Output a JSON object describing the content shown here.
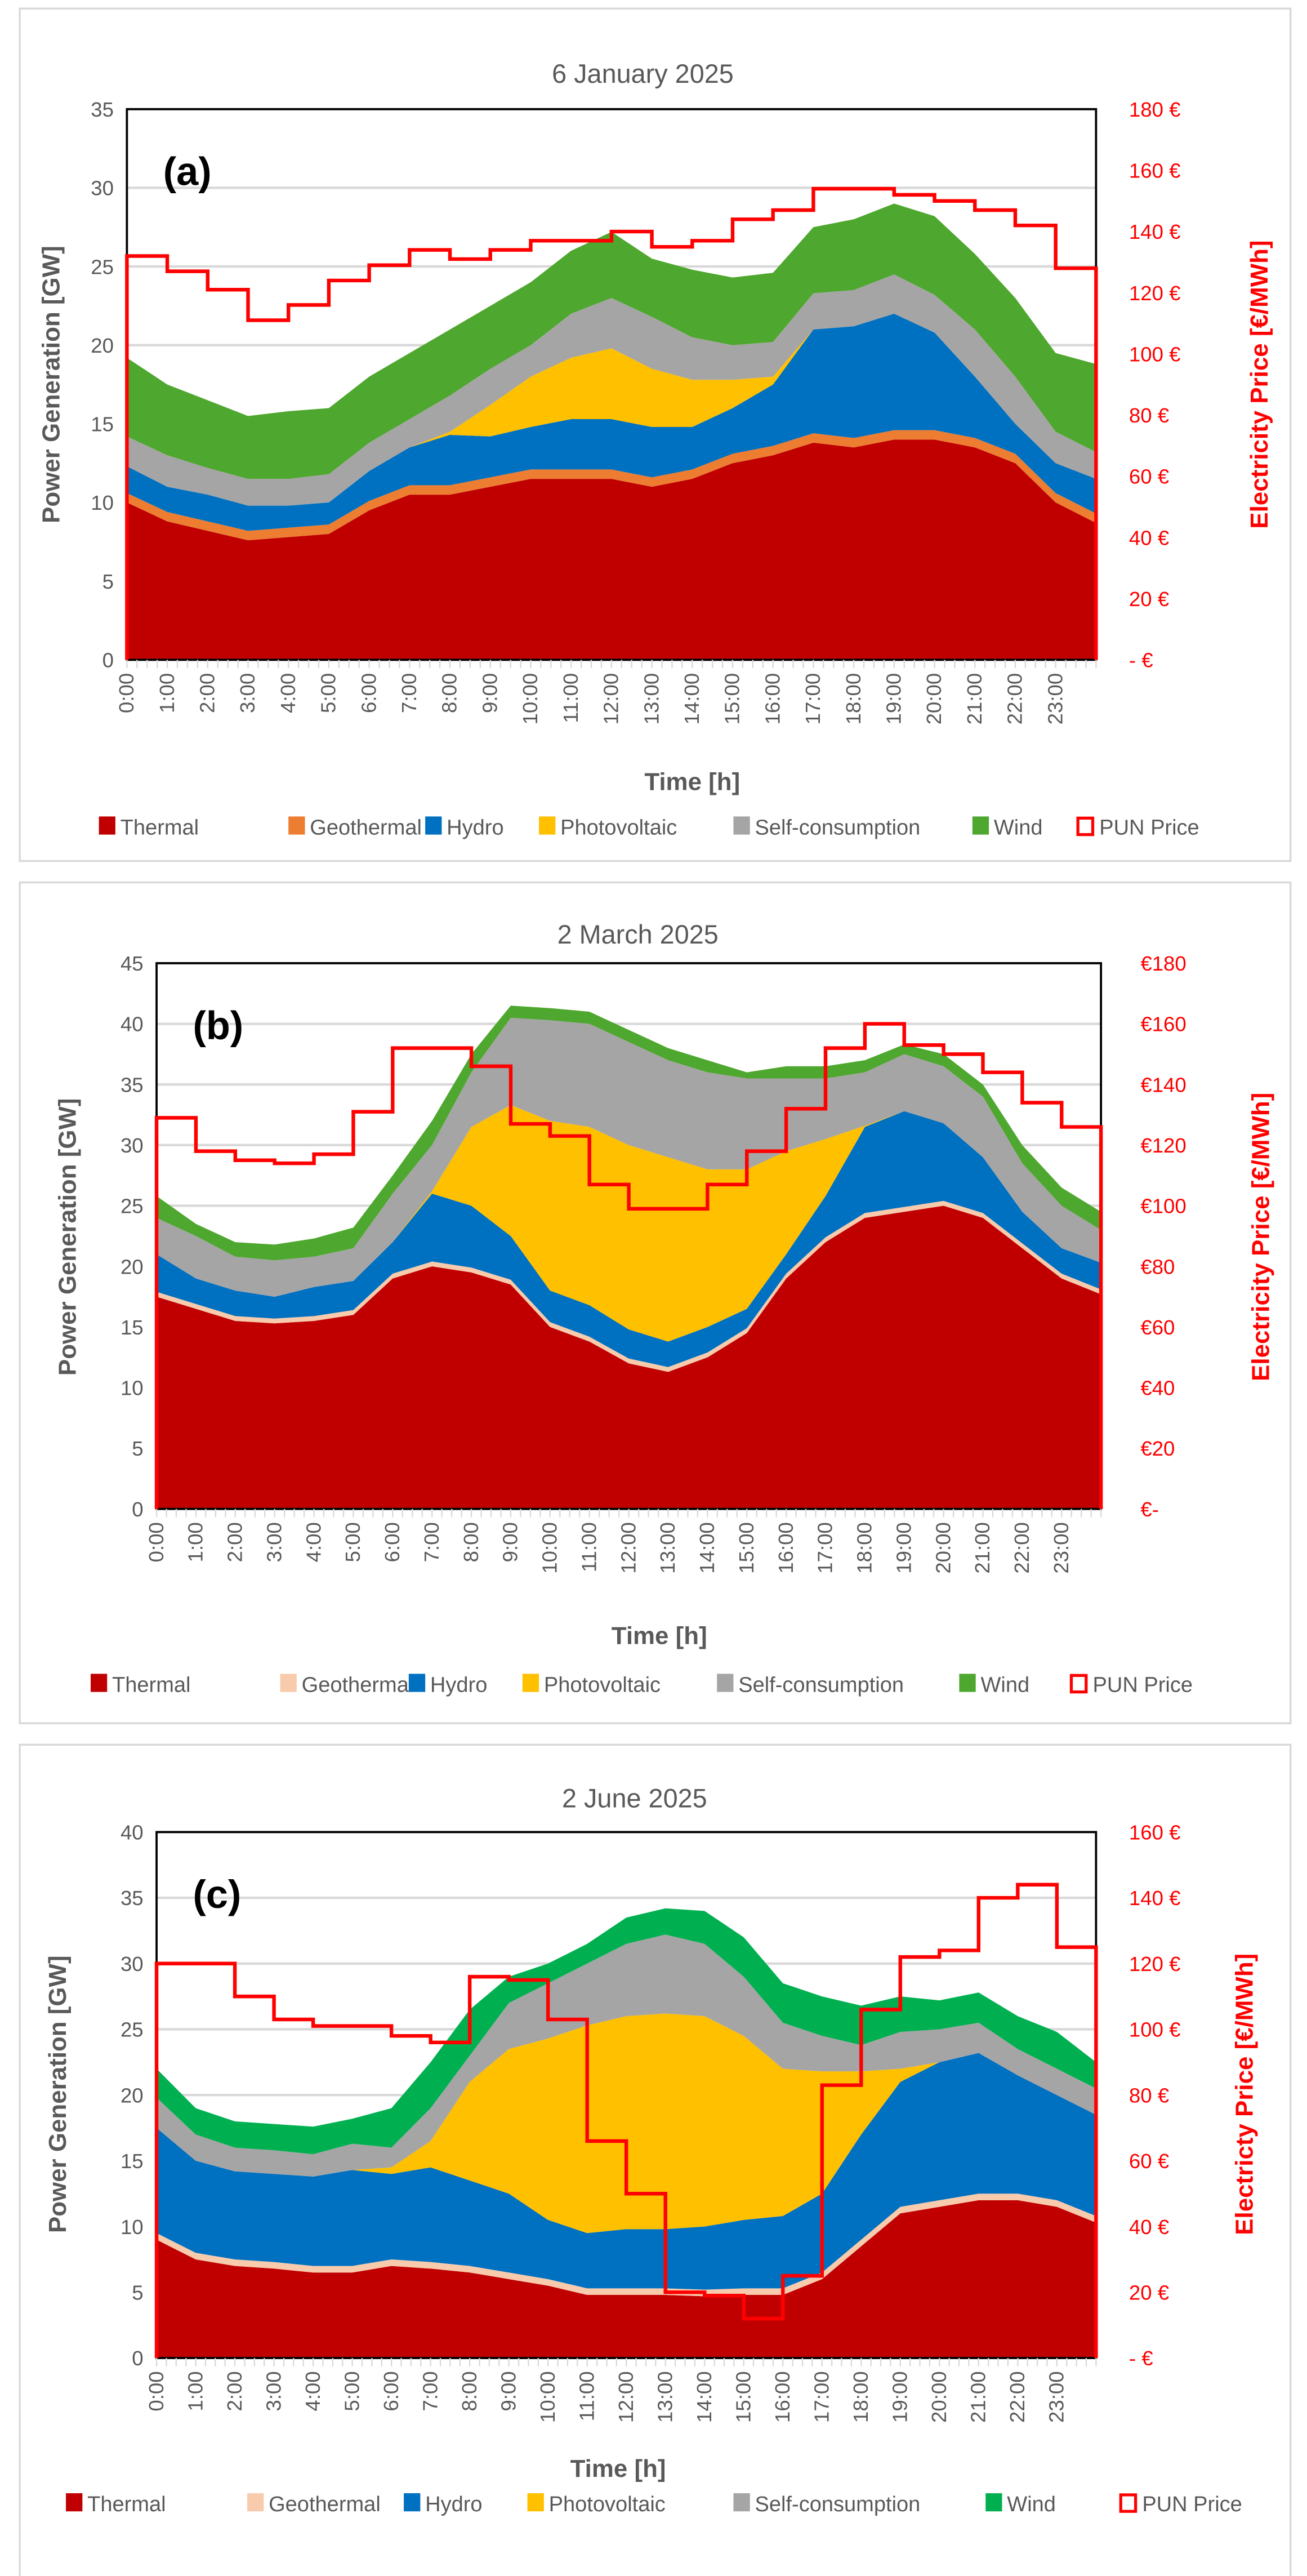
{
  "chart_data": [
    {
      "type": "area",
      "panel_label": "(a)",
      "title": "6 January 2025",
      "xlabel": "Time [h]",
      "ylabel": "Power Generation [GW]",
      "y2label": "Electricity Price [€/MWh]",
      "ylim": [
        0,
        35
      ],
      "ystep": 5,
      "y2lim": [
        0,
        180
      ],
      "y2step": 20,
      "y2_format": "suffix",
      "x_ticks": [
        "0:00",
        "1:00",
        "2:00",
        "3:00",
        "4:00",
        "5:00",
        "6:00",
        "7:00",
        "8:00",
        "9:00",
        "10:00",
        "11:00",
        "12:00",
        "13:00",
        "14:00",
        "15:00",
        "16:00",
        "17:00",
        "18:00",
        "19:00",
        "20:00",
        "21:00",
        "22:00",
        "23:00"
      ],
      "stacked_cumulative": true,
      "series": [
        {
          "name": "Thermal",
          "color": "#C00000",
          "values": [
            10,
            8.8,
            8.2,
            7.6,
            7.8,
            8,
            9.5,
            10.5,
            10.5,
            11,
            11.5,
            11.5,
            11.5,
            11,
            11.5,
            12.5,
            13,
            13.8,
            13.5,
            14,
            14,
            13.5,
            12.5,
            10,
            8.7
          ]
        },
        {
          "name": "Geothermal",
          "color": "#ED7D31",
          "values": [
            10.6,
            9.4,
            8.8,
            8.2,
            8.4,
            8.6,
            10.1,
            11.1,
            11.1,
            11.6,
            12.1,
            12.1,
            12.1,
            11.6,
            12.1,
            13.1,
            13.6,
            14.4,
            14.1,
            14.6,
            14.6,
            14.1,
            13.1,
            10.6,
            9.3
          ]
        },
        {
          "name": "Hydro",
          "color": "#0070C0",
          "values": [
            12.3,
            11,
            10.5,
            9.8,
            9.8,
            10,
            12,
            13.5,
            14.3,
            14.2,
            14.8,
            15.3,
            15.3,
            14.8,
            14.8,
            16,
            17.5,
            21,
            21.2,
            22,
            20.8,
            18,
            15,
            12.5,
            11.5
          ]
        },
        {
          "name": "Photovoltaic",
          "color": "#FFC000",
          "values": [
            12.3,
            11,
            10.5,
            9.8,
            9.8,
            10,
            12,
            13.5,
            14.5,
            16.2,
            18,
            19.2,
            19.8,
            18.5,
            17.8,
            17.8,
            18,
            21,
            21.2,
            22,
            20.8,
            18,
            15,
            12.5,
            11.5
          ]
        },
        {
          "name": "Self-consumption",
          "color": "#A5A5A5",
          "values": [
            14.2,
            13,
            12.2,
            11.5,
            11.5,
            11.8,
            13.8,
            15.3,
            16.8,
            18.5,
            20,
            22,
            23,
            21.8,
            20.5,
            20,
            20.2,
            23.3,
            23.5,
            24.5,
            23.2,
            21,
            18,
            14.5,
            13.2
          ]
        },
        {
          "name": "Wind",
          "color": "#4EA72E",
          "values": [
            19.2,
            17.5,
            16.5,
            15.5,
            15.8,
            16,
            18,
            19.5,
            21,
            22.5,
            24,
            26,
            27.2,
            25.5,
            24.8,
            24.3,
            24.6,
            27.5,
            28,
            29,
            28.2,
            25.8,
            23,
            19.5,
            18.8
          ]
        }
      ],
      "price": {
        "name": "PUN Price",
        "color": "#FF0000",
        "values": [
          132,
          127,
          121,
          111,
          116,
          124,
          129,
          134,
          131,
          134,
          137,
          137,
          140,
          135,
          137,
          144,
          147,
          154,
          154,
          152,
          150,
          147,
          142,
          128
        ]
      }
    },
    {
      "type": "area",
      "panel_label": "(b)",
      "title": "2 March 2025",
      "xlabel": "Time [h]",
      "ylabel": "Power Generation [GW]",
      "y2label": "Electricity Price [€/MWh]",
      "ylim": [
        0,
        45
      ],
      "ystep": 5,
      "y2lim": [
        0,
        180
      ],
      "y2step": 20,
      "y2_format": "prefix",
      "x_ticks": [
        "0:00",
        "1:00",
        "2:00",
        "3:00",
        "4:00",
        "5:00",
        "6:00",
        "7:00",
        "8:00",
        "9:00",
        "10:00",
        "11:00",
        "12:00",
        "13:00",
        "14:00",
        "15:00",
        "16:00",
        "17:00",
        "18:00",
        "19:00",
        "20:00",
        "21:00",
        "22:00",
        "23:00"
      ],
      "stacked_cumulative": true,
      "series": [
        {
          "name": "Thermal",
          "color": "#C00000",
          "values": [
            17.5,
            16.5,
            15.5,
            15.3,
            15.5,
            16,
            19,
            20,
            19.5,
            18.5,
            15,
            13.8,
            12,
            11.3,
            12.5,
            14.5,
            19,
            22,
            24,
            24.5,
            25,
            24,
            21.5,
            19,
            17.7
          ]
        },
        {
          "name": "Geothermal",
          "color": "#F8CBAD",
          "values": [
            17.9,
            16.9,
            15.9,
            15.7,
            15.9,
            16.4,
            19.4,
            20.4,
            19.9,
            18.9,
            15.4,
            14.2,
            12.4,
            11.7,
            12.9,
            14.9,
            19.4,
            22.4,
            24.4,
            24.9,
            25.4,
            24.4,
            21.9,
            19.4,
            18.1
          ]
        },
        {
          "name": "Hydro",
          "color": "#0070C0",
          "values": [
            21,
            19,
            18,
            17.5,
            18.3,
            18.8,
            22,
            26,
            25,
            22.5,
            18,
            16.8,
            14.8,
            13.8,
            15,
            16.5,
            21,
            25.8,
            31.5,
            32.8,
            31.8,
            29,
            24.5,
            21.5,
            20.3
          ]
        },
        {
          "name": "Photovoltaic",
          "color": "#FFC000",
          "values": [
            21,
            19,
            18,
            17.5,
            18.3,
            18.8,
            22,
            26.2,
            31.5,
            33.3,
            32,
            31.5,
            30,
            29,
            28,
            28,
            29.5,
            30.5,
            31.6,
            32.8,
            31.8,
            29,
            24.5,
            21.5,
            20.3
          ]
        },
        {
          "name": "Self-consumption",
          "color": "#A5A5A5",
          "values": [
            24,
            22.5,
            20.8,
            20.5,
            20.8,
            21.5,
            26,
            30,
            36,
            40.5,
            40.3,
            40,
            38.5,
            37,
            36,
            35.5,
            35.5,
            35.5,
            36,
            37.5,
            36.5,
            34,
            28.5,
            25,
            23
          ]
        },
        {
          "name": "Wind",
          "color": "#4EA72E",
          "values": [
            25.8,
            23.5,
            22,
            21.8,
            22.3,
            23.2,
            27.5,
            32,
            37.5,
            41.5,
            41.3,
            41,
            39.5,
            38,
            37,
            36,
            36.5,
            36.5,
            37,
            38.3,
            37.5,
            35,
            30,
            26.5,
            24.5
          ]
        }
      ],
      "price": {
        "name": "PUN Price",
        "color": "#FF0000",
        "values": [
          129,
          118,
          115,
          114,
          117,
          131,
          152,
          152,
          146,
          127,
          123,
          107,
          99,
          99,
          107,
          118,
          132,
          152,
          160,
          153,
          150,
          144,
          134,
          126
        ]
      }
    },
    {
      "type": "area",
      "panel_label": "(c)",
      "title": "2 June 2025",
      "xlabel": "Time [h]",
      "ylabel": "Power Generation [GW]",
      "y2label": "Electricty Price [€/MWh]",
      "ylim": [
        0,
        40
      ],
      "ystep": 5,
      "y2lim": [
        0,
        160
      ],
      "y2step": 20,
      "y2_format": "suffix",
      "x_ticks": [
        "0:00",
        "1:00",
        "2:00",
        "3:00",
        "4:00",
        "5:00",
        "6:00",
        "7:00",
        "8:00",
        "9:00",
        "10:00",
        "11:00",
        "12:00",
        "13:00",
        "14:00",
        "15:00",
        "16:00",
        "17:00",
        "18:00",
        "19:00",
        "20:00",
        "21:00",
        "22:00",
        "23:00"
      ],
      "stacked_cumulative": true,
      "series": [
        {
          "name": "Thermal",
          "color": "#C00000",
          "values": [
            9,
            7.5,
            7,
            6.8,
            6.5,
            6.5,
            7,
            6.8,
            6.5,
            6,
            5.5,
            4.8,
            4.8,
            4.8,
            4.7,
            4.8,
            4.8,
            6,
            8.5,
            11,
            11.5,
            12,
            12,
            11.5,
            10.3
          ]
        },
        {
          "name": "Geothermal",
          "color": "#F8CBAD",
          "values": [
            9.5,
            8,
            7.5,
            7.3,
            7,
            7,
            7.5,
            7.3,
            7,
            6.5,
            6,
            5.3,
            5.3,
            5.3,
            5.2,
            5.3,
            5.3,
            6.5,
            9,
            11.5,
            12,
            12.5,
            12.5,
            12,
            10.8
          ]
        },
        {
          "name": "Hydro",
          "color": "#0070C0",
          "values": [
            17.5,
            15,
            14.2,
            14,
            13.8,
            14.3,
            14,
            14.5,
            13.5,
            12.5,
            10.5,
            9.5,
            9.8,
            9.8,
            10,
            10.5,
            10.8,
            12.5,
            17,
            21,
            22.5,
            23.2,
            21.5,
            20,
            18.5
          ]
        },
        {
          "name": "Photovoltaic",
          "color": "#FFC000",
          "values": [
            17.5,
            15,
            14.2,
            14,
            13.8,
            14.3,
            14.5,
            16.5,
            21,
            23.5,
            24.3,
            25.3,
            26,
            26.2,
            26,
            24.5,
            22,
            21.8,
            21.8,
            22,
            22.5,
            23.2,
            21.5,
            20,
            18.5
          ]
        },
        {
          "name": "Self-consumption",
          "color": "#A5A5A5",
          "values": [
            19.8,
            17,
            16,
            15.8,
            15.5,
            16.3,
            16,
            19,
            23,
            27,
            28.5,
            30,
            31.5,
            32.2,
            31.5,
            29,
            25.5,
            24.5,
            23.8,
            24.8,
            25,
            25.5,
            23.5,
            22,
            20.5
          ]
        },
        {
          "name": "Wind",
          "color": "#00B050",
          "values": [
            22,
            19,
            18,
            17.8,
            17.6,
            18.2,
            19,
            22.5,
            26.5,
            29,
            30,
            31.5,
            33.5,
            34.2,
            34,
            32,
            28.5,
            27.5,
            26.8,
            27.5,
            27.2,
            27.8,
            26,
            24.8,
            22.5
          ]
        }
      ],
      "price": {
        "name": "PUN Price",
        "color": "#FF0000",
        "values": [
          120,
          120,
          110,
          103,
          101,
          101,
          98,
          96,
          116,
          115,
          103,
          66,
          50,
          20,
          19,
          12,
          25,
          83,
          106,
          122,
          124,
          140,
          144,
          125
        ]
      }
    }
  ]
}
